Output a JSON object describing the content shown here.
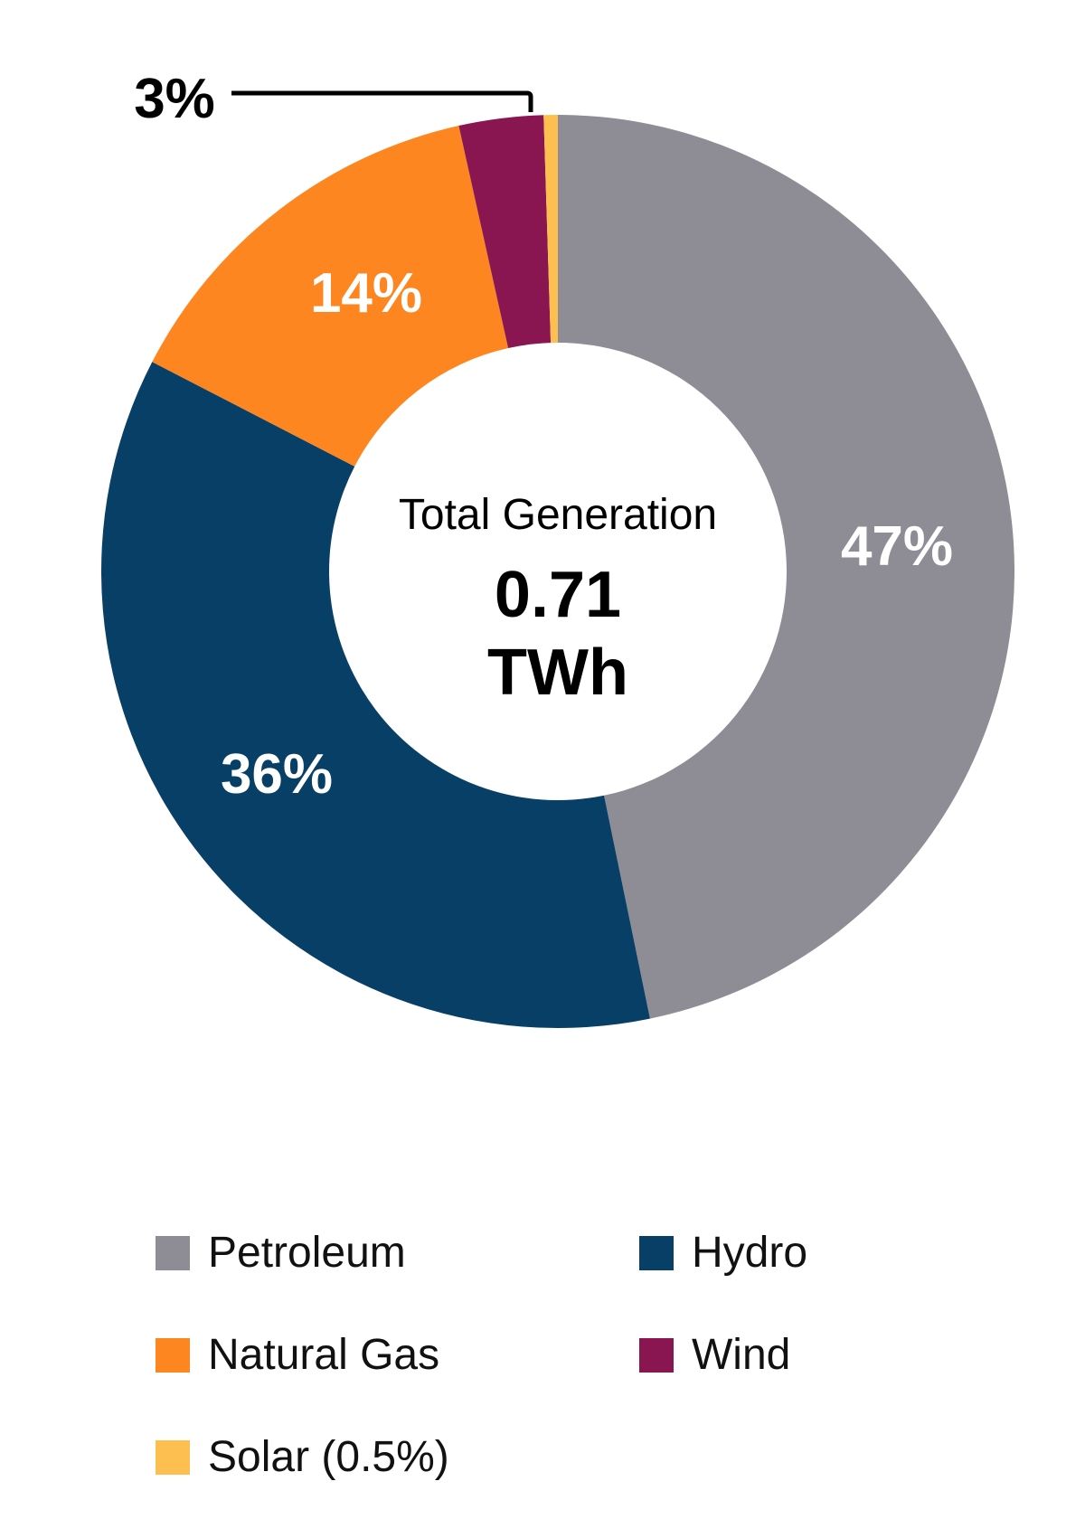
{
  "chart_data": {
    "type": "pie",
    "subtype": "donut",
    "center_text": {
      "title": "Total Generation",
      "value": "0.71",
      "unit": "TWh"
    },
    "slices": [
      {
        "name": "Petroleum",
        "value": 47,
        "label": "47%",
        "color": "#8e8d96"
      },
      {
        "name": "Hydro",
        "value": 36,
        "label": "36%",
        "color": "#083f67"
      },
      {
        "name": "Natural Gas",
        "value": 14,
        "label": "14%",
        "color": "#fd8620"
      },
      {
        "name": "Wind",
        "value": 3,
        "label": "3%",
        "color": "#891650"
      },
      {
        "name": "Solar",
        "value": 0.5,
        "label": "",
        "color": "#fdbf50"
      }
    ],
    "legend": [
      {
        "label": "Petroleum",
        "color": "#8e8d96"
      },
      {
        "label": "Hydro",
        "color": "#083f67"
      },
      {
        "label": "Natural Gas",
        "color": "#fd8620"
      },
      {
        "label": "Wind",
        "color": "#891650"
      },
      {
        "label": "Solar (0.5%)",
        "color": "#fdbf50"
      }
    ],
    "legend_position": "bottom"
  }
}
